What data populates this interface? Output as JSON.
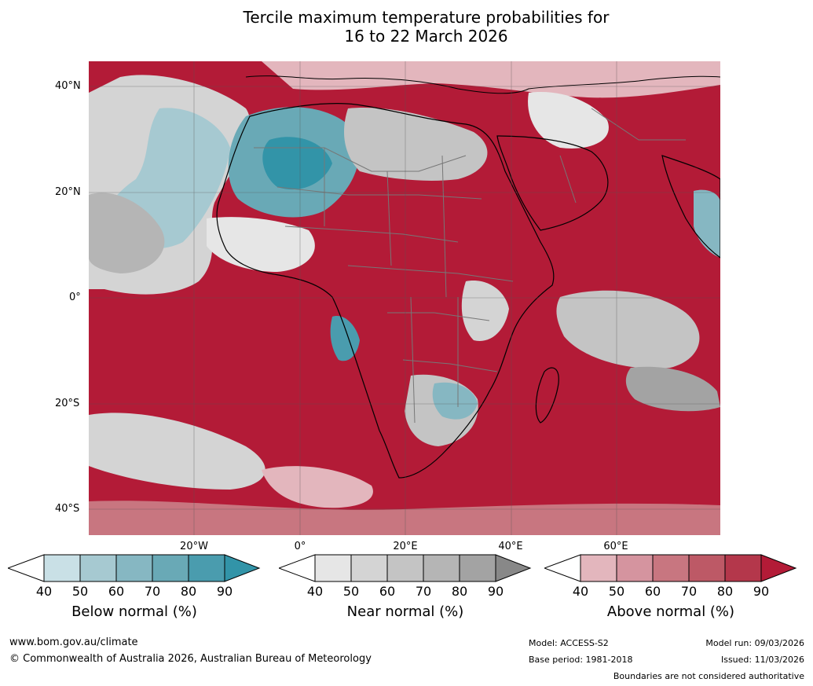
{
  "title": {
    "line1": "Tercile maximum temperature probabilities for",
    "line2": "16 to 22 March 2026"
  },
  "map": {
    "region": "Africa",
    "lat_labels": [
      "40°N",
      "20°N",
      "0°",
      "20°S",
      "40°S"
    ],
    "lon_labels": [
      "20°W",
      "0°",
      "20°E",
      "40°E",
      "60°E"
    ]
  },
  "colorbars": [
    {
      "caption": "Below normal (%)",
      "ticks": [
        "40",
        "50",
        "60",
        "70",
        "80",
        "90"
      ],
      "colors": [
        "#ffffff",
        "#c9e0e6",
        "#a6c9d1",
        "#86b7c2",
        "#69a9b6",
        "#4a9cae",
        "#3294a8"
      ]
    },
    {
      "caption": "Near normal (%)",
      "ticks": [
        "40",
        "50",
        "60",
        "70",
        "80",
        "90"
      ],
      "colors": [
        "#ffffff",
        "#e6e6e6",
        "#d4d4d4",
        "#c4c4c4",
        "#b5b5b5",
        "#a3a3a3",
        "#888888"
      ]
    },
    {
      "caption": "Above normal (%)",
      "ticks": [
        "40",
        "50",
        "60",
        "70",
        "80",
        "90"
      ],
      "colors": [
        "#ffffff",
        "#e3b6bd",
        "#d5949f",
        "#c87680",
        "#bd5966",
        "#b4374b",
        "#b31b37"
      ]
    }
  ],
  "footer": {
    "website": "www.bom.gov.au/climate",
    "copyright": "© Commonwealth of Australia 2026, Australian Bureau of Meteorology",
    "model": "Model: ACCESS-S2",
    "base_period": "Base period: 1981-2018",
    "model_run": "Model run: 09/03/2026",
    "issued": "Issued: 11/03/2026",
    "disclaimer": "Boundaries are not considered authoritative"
  }
}
